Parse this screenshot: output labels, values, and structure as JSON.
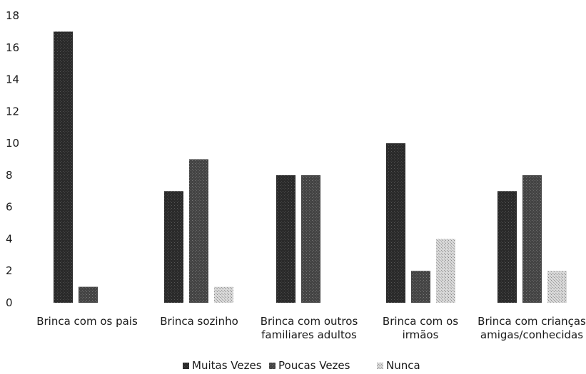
{
  "chart_data": {
    "type": "bar",
    "title": "",
    "xlabel": "",
    "ylabel": "",
    "ylim": [
      0,
      18
    ],
    "yticks": [
      "0",
      "2",
      "4",
      "6",
      "8",
      "10",
      "12",
      "14",
      "16",
      "18"
    ],
    "categories": [
      [
        "Brinca com os pais"
      ],
      [
        "Brinca sozinho"
      ],
      [
        "Brinca com outros",
        "familiares adultos"
      ],
      [
        "Brinca com os",
        "irmãos"
      ],
      [
        "Brinca com crianças",
        "amigas/conhecidas"
      ]
    ],
    "series": [
      {
        "name": "Muitas Vezes",
        "color": "#2b2b2b",
        "values": [
          17,
          7,
          8,
          10,
          7
        ]
      },
      {
        "name": "Poucas Vezes",
        "color": "#4a4a4a",
        "values": [
          1,
          9,
          8,
          2,
          8
        ]
      },
      {
        "name": "Nunca",
        "color": "#c8c8c8",
        "values": [
          0,
          1,
          0,
          4,
          2
        ]
      }
    ],
    "grid": false,
    "legend": "bottom-center"
  }
}
